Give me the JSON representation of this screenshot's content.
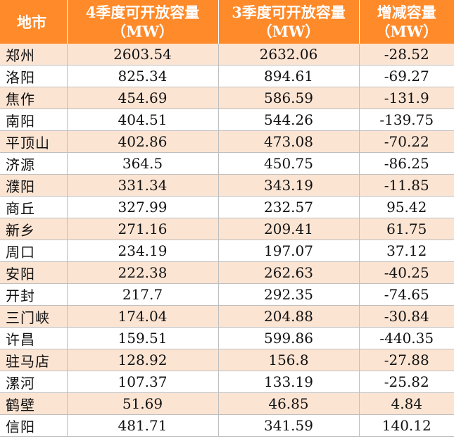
{
  "header": {
    "city": "地市",
    "q4": "4季度可开放容量（MW）",
    "q3": "3季度可开放容量（MW）",
    "change": "增减容量（MW）"
  },
  "rows": [
    {
      "city": "郑州",
      "q4": "2603.54",
      "q3": "2632.06",
      "change": "-28.52"
    },
    {
      "city": "洛阳",
      "q4": "825.34",
      "q3": "894.61",
      "change": "-69.27"
    },
    {
      "city": "焦作",
      "q4": "454.69",
      "q3": "586.59",
      "change": "-131.9"
    },
    {
      "city": "南阳",
      "q4": "404.51",
      "q3": "544.26",
      "change": "-139.75"
    },
    {
      "city": "平顶山",
      "q4": "402.86",
      "q3": "473.08",
      "change": "-70.22"
    },
    {
      "city": "济源",
      "q4": "364.5",
      "q3": "450.75",
      "change": "-86.25"
    },
    {
      "city": "濮阳",
      "q4": "331.34",
      "q3": "343.19",
      "change": "-11.85"
    },
    {
      "city": "商丘",
      "q4": "327.99",
      "q3": "232.57",
      "change": "95.42"
    },
    {
      "city": "新乡",
      "q4": "271.16",
      "q3": "209.41",
      "change": "61.75"
    },
    {
      "city": "周口",
      "q4": "234.19",
      "q3": "197.07",
      "change": "37.12"
    },
    {
      "city": "安阳",
      "q4": "222.38",
      "q3": "262.63",
      "change": "-40.25"
    },
    {
      "city": "开封",
      "q4": "217.7",
      "q3": "292.35",
      "change": "-74.65"
    },
    {
      "city": "三门峡",
      "q4": "174.04",
      "q3": "204.88",
      "change": "-30.84"
    },
    {
      "city": "许昌",
      "q4": "159.51",
      "q3": "599.86",
      "change": "-440.35"
    },
    {
      "city": "驻马店",
      "q4": "128.92",
      "q3": "156.8",
      "change": "-27.88"
    },
    {
      "city": "漯河",
      "q4": "107.37",
      "q3": "133.19",
      "change": "-25.82"
    },
    {
      "city": "鹤壁",
      "q4": "51.69",
      "q3": "46.85",
      "change": "4.84"
    },
    {
      "city": "信阳",
      "q4": "481.71",
      "q3": "341.59",
      "change": "140.12"
    }
  ]
}
